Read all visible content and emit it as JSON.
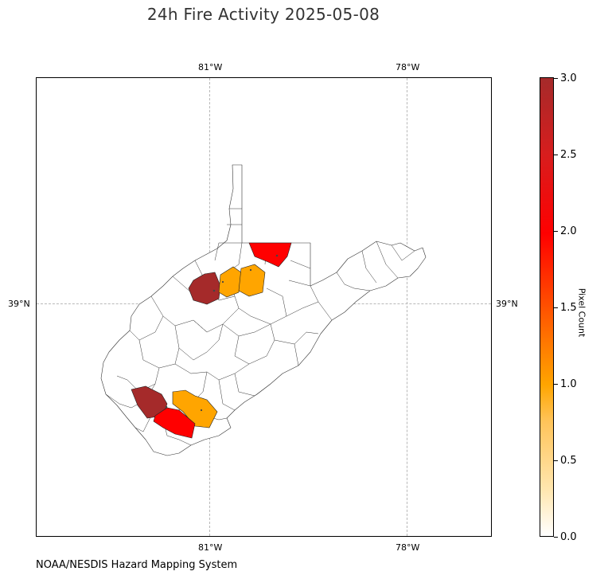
{
  "title": "24h Fire Activity 2025-05-08",
  "source": "NOAA/NESDIS Hazard Mapping System",
  "map": {
    "lon_labels": [
      "81°W",
      "78°W"
    ],
    "lat_labels": [
      "39°N"
    ],
    "highlighted_counties": [
      {
        "name": "county-wood-area",
        "pixel_count": 3
      },
      {
        "name": "county-ritchie-area",
        "pixel_count": 1
      },
      {
        "name": "county-doddridge-area",
        "pixel_count": 1
      },
      {
        "name": "county-monongalia-area",
        "pixel_count": 2
      },
      {
        "name": "county-mingo-area",
        "pixel_count": 3
      },
      {
        "name": "county-wyoming-area",
        "pixel_count": 1
      },
      {
        "name": "county-mcdowell-area",
        "pixel_count": 2
      }
    ]
  },
  "colorbar": {
    "label": "Pixel Count",
    "ticks": [
      "0.0",
      "0.5",
      "1.0",
      "1.5",
      "2.0",
      "2.5",
      "3.0"
    ],
    "range": [
      0,
      3
    ],
    "colors": {
      "low": "#ffffff",
      "mid": "#ffa500",
      "high": "#ff0000",
      "max": "#a52a2a"
    }
  }
}
